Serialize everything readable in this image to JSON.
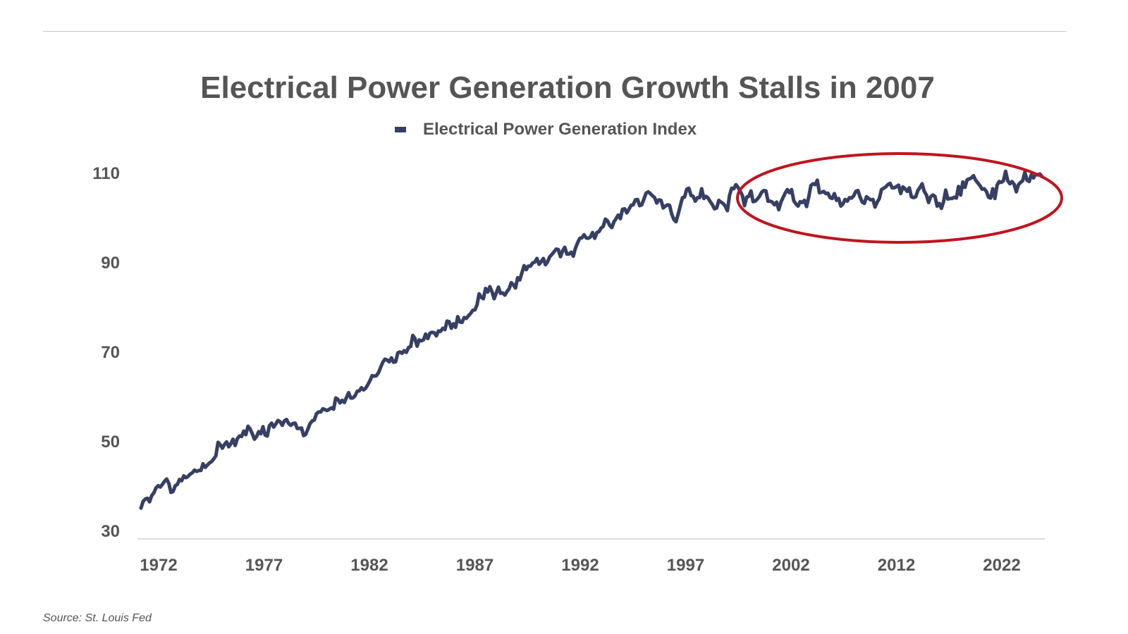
{
  "colors": {
    "series": "#363f64",
    "highlight": "#c0141f",
    "axis": "#dcdcdc",
    "text": "#555555"
  },
  "source_note": "Source: St. Louis Fed",
  "chart_data": {
    "type": "line",
    "title": "Electrical Power Generation Growth Stalls in 2007",
    "xlabel": "",
    "ylabel": "",
    "yticks": [
      30,
      50,
      70,
      90,
      110
    ],
    "xticks": [
      "1972",
      "1977",
      "1982",
      "1987",
      "1992",
      "1997",
      "2002",
      "2012",
      "2022"
    ],
    "ylim": [
      30,
      110
    ],
    "grid": false,
    "legend_position": "top",
    "annotation": "ellipse highlighting the flat series from about 2007 onward",
    "series": [
      {
        "name": "Electrical Power Generation Index",
        "values": [
          35,
          36.5,
          37,
          37.2,
          36.4,
          37.8,
          38.4,
          39.5,
          40,
          39.7,
          40.3,
          41,
          41.5,
          40.5,
          38.5,
          38.7,
          40,
          40.3,
          41.4,
          41.1,
          42.2,
          41.8,
          42.1,
          42.6,
          42.9,
          43.5,
          43.2,
          43.4,
          43.4,
          44.9,
          44.1,
          44.6,
          45.1,
          45.4,
          46,
          46.7,
          49.7,
          49.2,
          48.4,
          49.2,
          49.8,
          48.7,
          49.4,
          50.4,
          49,
          50.5,
          51.1,
          51,
          52.2,
          51.4,
          53.3,
          52.7,
          51.6,
          50.4,
          51,
          52.1,
          51.6,
          53.2,
          51.3,
          51.1,
          53.4,
          54,
          53.1,
          53.8,
          54.6,
          54.3,
          53.5,
          54.5,
          54.8,
          53.9,
          53.5,
          53.9,
          54,
          52.8,
          52.8,
          52.9,
          51.2,
          51.5,
          52.7,
          53.9,
          54.5,
          54.7,
          56.1,
          56.5,
          56.5,
          57.2,
          57,
          56.8,
          57.1,
          57.4,
          57.1,
          59.6,
          59.3,
          58.5,
          59.1,
          58.6,
          59.7,
          60.8,
          59.6,
          59.6,
          60.1,
          61.1,
          61.2,
          61.9,
          61.4,
          61.8,
          62.6,
          63.5,
          64.6,
          64.5,
          64.6,
          65.3,
          66.5,
          67.6,
          68.3,
          68.1,
          67.7,
          68.6,
          67.6,
          67.7,
          69.7,
          69.9,
          69.6,
          70.2,
          69.8,
          70.9,
          71.1,
          73.6,
          72.9,
          71.2,
          72.6,
          72.4,
          72.6,
          73.9,
          72.9,
          74.1,
          74.3,
          74.2,
          73.5,
          74.6,
          74.5,
          75.2,
          74.9,
          76.8,
          76.7,
          75.2,
          76.2,
          75.4,
          77.8,
          76.6,
          76.5,
          77.6,
          77.4,
          78,
          78.5,
          79.2,
          79.3,
          80.4,
          82.9,
          82.1,
          81.8,
          84.1,
          83.3,
          84.5,
          83.4,
          81.8,
          83.1,
          84.4,
          83,
          83.1,
          82.6,
          83.4,
          84,
          85.4,
          84.9,
          84.2,
          86.5,
          86,
          87.6,
          89.2,
          88.3,
          89.1,
          89.1,
          89.8,
          90,
          90.8,
          89.5,
          90.1,
          90.8,
          89.4,
          90.1,
          91.2,
          91.7,
          92.3,
          92.9,
          92.8,
          91.2,
          92.5,
          93.3,
          91.8,
          91.8,
          92.2,
          91.3,
          93.1,
          94.3,
          95.3,
          95.4,
          96.1,
          95.4,
          95.3,
          95.6,
          96.6,
          95.3,
          96.6,
          96.8,
          97.6,
          98,
          99.6,
          99.2,
          98.2,
          97.7,
          99,
          99.7,
          100.5,
          99.7,
          101.8,
          101.9,
          101,
          101.8,
          102.7,
          102.8,
          103.9,
          104,
          102.6,
          102.8,
          104.1,
          105.4,
          105.7,
          105.3,
          104.8,
          104.4,
          103.2,
          103.9,
          103.8,
          102.1,
          102.5,
          102.8,
          102.7,
          100.7,
          99.5,
          99,
          100.7,
          102.6,
          104.4,
          104.5,
          106.3,
          106.5,
          104.9,
          104.7,
          103.6,
          104.4,
          104.4,
          106.4,
          104.2,
          104.7,
          104.3,
          103.5,
          102.8,
          101.9,
          102.1,
          103.8,
          103.4,
          103.1,
          102.5,
          101.5,
          104.9,
          106.5,
          106.4,
          107.3,
          106.7,
          105.8,
          104.9,
          102.6,
          104.5,
          104.7,
          105.9,
          103.5,
          103.6,
          104.1,
          104.7,
          105.6,
          106,
          105.9,
          103.6,
          103.6,
          103.4,
          102.8,
          103.4,
          101.7,
          103.4,
          104.4,
          105.4,
          106.2,
          105.5,
          106.2,
          103.7,
          103,
          102.5,
          103.5,
          103.3,
          103.8,
          102.4,
          104.5,
          107.1,
          107.5,
          107.3,
          108.3,
          105.5,
          105.6,
          105.8,
          105.3,
          105.4,
          104.4,
          104.2,
          105.3,
          103.8,
          104.2,
          102.5,
          103,
          104,
          103.6,
          104.4,
          104.3,
          104.8,
          105.8,
          106,
          104.5,
          103.4,
          103.1,
          104.6,
          104.2,
          103.9,
          104,
          102.3,
          103.4,
          104.2,
          106.2,
          106.5,
          106.8,
          107.3,
          107.6,
          106.6,
          106.6,
          106.9,
          107.2,
          105.3,
          106.8,
          106.4,
          105.8,
          106.6,
          104.6,
          104.4,
          104.6,
          106,
          106.7,
          107.5,
          105.8,
          105,
          103.3,
          104.6,
          105,
          104.7,
          102.5,
          103.1,
          102,
          103.5,
          106.1,
          104.1,
          104.2,
          104.2,
          104.5,
          104.3,
          106.9,
          105,
          107.9,
          106.7,
          108.4,
          108.6,
          108.8,
          109.3,
          108.3,
          107.7,
          107.1,
          106.3,
          106.4,
          105.8,
          104.5,
          104.3,
          106.4,
          104.2,
          107.2,
          108,
          107.8,
          108.2,
          110.3,
          108.2,
          107.5,
          108,
          107.4,
          105.7,
          107.3,
          107.8,
          108.2,
          110.1,
          108.3,
          108,
          109.5,
          108.8,
          109.6,
          109.5,
          109.7,
          109.1
        ]
      }
    ]
  }
}
